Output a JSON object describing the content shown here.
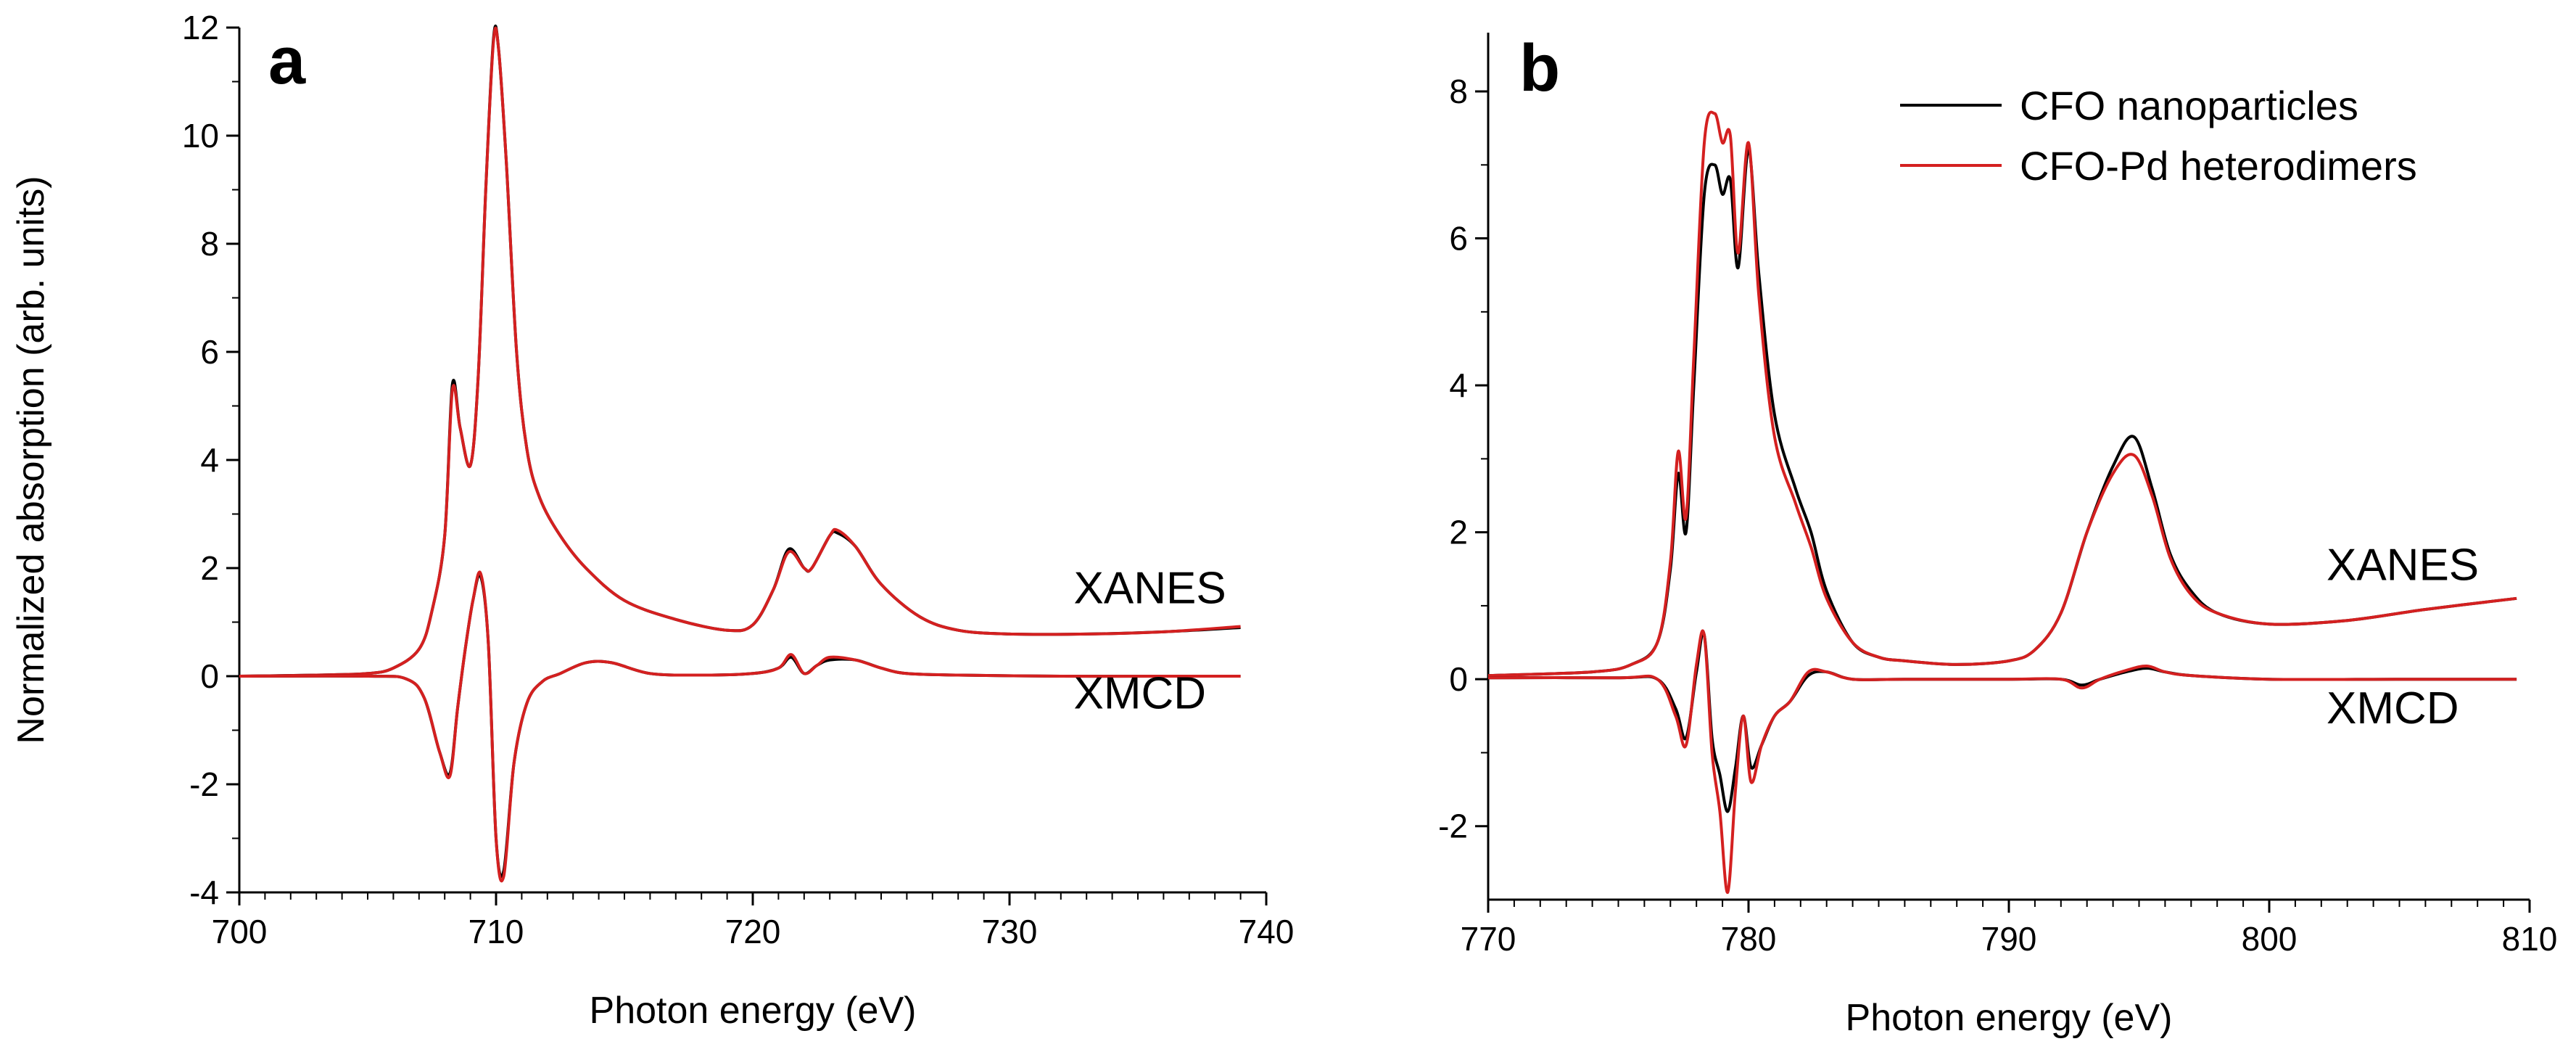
{
  "figure": {
    "panels": [
      "a",
      "b"
    ]
  },
  "colors": {
    "series_black": "#000000",
    "series_red": "#d42020"
  },
  "chart_data": [
    {
      "type": "line",
      "panel_label": "a",
      "xlabel": "Photon energy (eV)",
      "ylabel": "Normalized absorption (arb. units)",
      "xlim": [
        700,
        740
      ],
      "ylim": [
        -4,
        12
      ],
      "x_ticks": [
        700,
        710,
        720,
        730,
        740
      ],
      "y_ticks": [
        -4,
        -2,
        0,
        2,
        4,
        6,
        8,
        10,
        12
      ],
      "annotations": [
        {
          "text": "XANES",
          "x": 732.5,
          "y": 1.35
        },
        {
          "text": "XMCD",
          "x": 732.5,
          "y": -0.6
        }
      ],
      "series": [
        {
          "name": "CFO nanoparticles XANES",
          "color": "#000000",
          "x": [
            700,
            703,
            705,
            706,
            707,
            707.5,
            708,
            708.3,
            708.6,
            709,
            709.3,
            709.6,
            709.9,
            710.1,
            710.4,
            710.8,
            711.2,
            711.7,
            712.5,
            713.5,
            715,
            717,
            719,
            720,
            720.8,
            721.4,
            722,
            722.3,
            723,
            723.3,
            724,
            725,
            726.5,
            728,
            730,
            733,
            736,
            739
          ],
          "y": [
            0,
            0.02,
            0.05,
            0.15,
            0.5,
            1.2,
            2.6,
            5.4,
            4.6,
            3.9,
            5.5,
            9.0,
            11.8,
            11.6,
            9.5,
            6.0,
            4.2,
            3.3,
            2.6,
            2.0,
            1.4,
            1.05,
            0.85,
            0.95,
            1.6,
            2.35,
            2.0,
            2.0,
            2.6,
            2.65,
            2.4,
            1.7,
            1.1,
            0.85,
            0.78,
            0.78,
            0.82,
            0.9
          ]
        },
        {
          "name": "CFO-Pd heterodimers XANES",
          "color": "#d42020",
          "x": [
            700,
            703,
            705,
            706,
            707,
            707.5,
            708,
            708.3,
            708.6,
            709,
            709.3,
            709.6,
            709.9,
            710.1,
            710.4,
            710.8,
            711.2,
            711.7,
            712.5,
            713.5,
            715,
            717,
            719,
            720,
            720.8,
            721.4,
            722,
            722.3,
            723,
            723.3,
            724,
            725,
            726.5,
            728,
            730,
            733,
            736,
            739
          ],
          "y": [
            0,
            0.02,
            0.05,
            0.15,
            0.5,
            1.2,
            2.6,
            5.3,
            4.6,
            3.9,
            5.5,
            9.0,
            11.75,
            11.6,
            9.5,
            6.0,
            4.2,
            3.3,
            2.6,
            2.0,
            1.4,
            1.05,
            0.85,
            0.95,
            1.6,
            2.3,
            2.0,
            2.0,
            2.6,
            2.7,
            2.4,
            1.7,
            1.1,
            0.85,
            0.78,
            0.78,
            0.82,
            0.92
          ]
        },
        {
          "name": "CFO nanoparticles XMCD",
          "color": "#000000",
          "x": [
            700,
            705,
            706.5,
            707.2,
            707.8,
            708.2,
            708.5,
            708.8,
            709.1,
            709.4,
            709.7,
            710.0,
            710.3,
            710.7,
            711.2,
            711.8,
            712.5,
            713.5,
            714.5,
            716,
            718,
            720,
            721,
            721.5,
            722,
            722.5,
            723,
            724,
            725,
            726,
            728,
            732,
            736,
            739
          ],
          "y": [
            0,
            0,
            -0.05,
            -0.4,
            -1.4,
            -1.8,
            -0.6,
            0.5,
            1.4,
            1.85,
            0.6,
            -3.0,
            -3.6,
            -1.6,
            -0.5,
            -0.1,
            0.05,
            0.25,
            0.25,
            0.05,
            0.02,
            0.05,
            0.15,
            0.35,
            0.05,
            0.2,
            0.3,
            0.3,
            0.15,
            0.05,
            0.02,
            0,
            0,
            0
          ]
        },
        {
          "name": "CFO-Pd heterodimers XMCD",
          "color": "#d42020",
          "x": [
            700,
            705,
            706.5,
            707.2,
            707.8,
            708.2,
            708.5,
            708.8,
            709.1,
            709.4,
            709.7,
            710.0,
            710.3,
            710.7,
            711.2,
            711.8,
            712.5,
            713.5,
            714.5,
            716,
            718,
            720,
            721,
            721.5,
            722,
            722.5,
            723,
            724,
            725,
            726,
            728,
            732,
            736,
            739
          ],
          "y": [
            0,
            0,
            -0.05,
            -0.4,
            -1.4,
            -1.85,
            -0.6,
            0.5,
            1.4,
            1.9,
            0.6,
            -3.0,
            -3.7,
            -1.6,
            -0.5,
            -0.1,
            0.05,
            0.25,
            0.25,
            0.05,
            0.02,
            0.05,
            0.15,
            0.4,
            0.05,
            0.2,
            0.35,
            0.3,
            0.15,
            0.05,
            0.02,
            0,
            0,
            0
          ]
        }
      ]
    },
    {
      "type": "line",
      "panel_label": "b",
      "xlabel": "Photon energy (eV)",
      "ylabel": "",
      "xlim": [
        770,
        810
      ],
      "ylim": [
        -3,
        8.8
      ],
      "x_ticks": [
        770,
        780,
        790,
        800,
        810
      ],
      "y_ticks": [
        -2,
        0,
        2,
        4,
        6,
        8
      ],
      "legend": {
        "position": "top-right",
        "entries": [
          {
            "label": "CFO nanoparticles",
            "color": "#000000"
          },
          {
            "label": "CFO-Pd heterodimers",
            "color": "#d42020"
          }
        ]
      },
      "annotations": [
        {
          "text": "XANES",
          "x": 802.2,
          "y": 1.35
        },
        {
          "text": "XMCD",
          "x": 802.2,
          "y": -0.6
        }
      ],
      "series": [
        {
          "name": "CFO nanoparticles XANES",
          "color": "#000000",
          "x": [
            770,
            774,
            775.5,
            776.5,
            777.0,
            777.3,
            777.6,
            777.9,
            778.3,
            778.7,
            779.0,
            779.3,
            779.6,
            780.0,
            780.4,
            781.0,
            781.8,
            782.4,
            783,
            784,
            785,
            786,
            788,
            790,
            791,
            792,
            793,
            794,
            794.8,
            795.5,
            796.2,
            797,
            798,
            800,
            803,
            806,
            809.5
          ],
          "y": [
            0.05,
            0.1,
            0.2,
            0.5,
            1.5,
            2.8,
            2.0,
            4.0,
            6.6,
            7.0,
            6.6,
            6.8,
            5.6,
            7.2,
            5.5,
            3.6,
            2.6,
            2.0,
            1.2,
            0.5,
            0.3,
            0.25,
            0.2,
            0.25,
            0.4,
            0.9,
            2.0,
            2.9,
            3.3,
            2.6,
            1.7,
            1.2,
            0.9,
            0.75,
            0.8,
            0.95,
            1.1
          ]
        },
        {
          "name": "CFO-Pd heterodimers XANES",
          "color": "#d42020",
          "x": [
            770,
            774,
            775.5,
            776.5,
            777.0,
            777.3,
            777.6,
            777.9,
            778.3,
            778.7,
            779.0,
            779.3,
            779.6,
            780.0,
            780.4,
            781.0,
            781.8,
            782.4,
            783,
            784,
            785,
            786,
            788,
            790,
            791,
            792,
            793,
            794,
            794.8,
            795.5,
            796.2,
            797,
            798,
            800,
            803,
            806,
            809.5
          ],
          "y": [
            0.05,
            0.1,
            0.2,
            0.5,
            1.6,
            3.1,
            2.2,
            4.4,
            7.3,
            7.7,
            7.3,
            7.4,
            5.8,
            7.3,
            5.2,
            3.3,
            2.4,
            1.8,
            1.1,
            0.5,
            0.3,
            0.25,
            0.2,
            0.25,
            0.4,
            0.9,
            2.0,
            2.8,
            3.05,
            2.5,
            1.65,
            1.15,
            0.9,
            0.75,
            0.8,
            0.95,
            1.1
          ]
        },
        {
          "name": "CFO nanoparticles XMCD",
          "color": "#000000",
          "x": [
            770,
            775,
            776.5,
            777.2,
            777.6,
            778.0,
            778.3,
            778.6,
            778.9,
            779.2,
            779.5,
            779.8,
            780.1,
            780.5,
            781.0,
            781.6,
            782.3,
            783,
            784,
            786,
            790,
            792,
            792.8,
            793.5,
            794.5,
            795.3,
            796,
            797,
            800,
            805,
            809.5
          ],
          "y": [
            0.02,
            0.02,
            0,
            -0.4,
            -0.8,
            0.1,
            0.6,
            -0.8,
            -1.3,
            -1.8,
            -1.2,
            -0.5,
            -1.2,
            -0.9,
            -0.5,
            -0.3,
            0.05,
            0.1,
            0,
            0,
            0,
            0,
            -0.08,
            0,
            0.1,
            0.15,
            0.1,
            0.05,
            0,
            0,
            0
          ]
        },
        {
          "name": "CFO-Pd heterodimers XMCD",
          "color": "#d42020",
          "x": [
            770,
            775,
            776.5,
            777.2,
            777.6,
            778.0,
            778.3,
            778.6,
            778.9,
            779.2,
            779.5,
            779.8,
            780.1,
            780.5,
            781.0,
            781.6,
            782.3,
            783,
            784,
            786,
            790,
            792,
            792.8,
            793.5,
            794.5,
            795.3,
            796,
            797,
            800,
            805,
            809.5
          ],
          "y": [
            0.02,
            0.02,
            0,
            -0.5,
            -0.9,
            0.2,
            0.6,
            -1.0,
            -1.8,
            -2.9,
            -1.5,
            -0.5,
            -1.4,
            -0.9,
            -0.5,
            -0.3,
            0.1,
            0.1,
            0,
            0,
            0,
            0,
            -0.12,
            0,
            0.12,
            0.18,
            0.1,
            0.05,
            0,
            0,
            0
          ]
        }
      ]
    }
  ]
}
